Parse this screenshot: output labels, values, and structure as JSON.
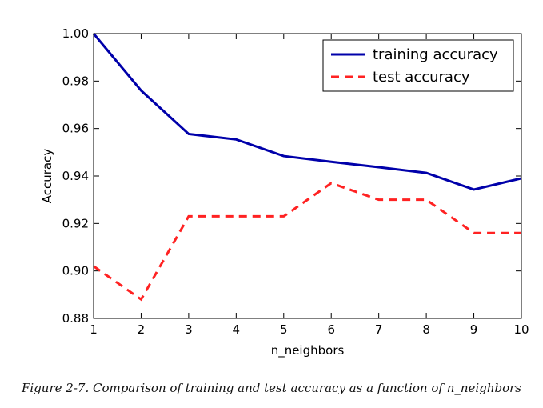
{
  "chart_data": {
    "type": "line",
    "xlabel": "n_neighbors",
    "ylabel": "Accuracy",
    "x": [
      1,
      2,
      3,
      4,
      5,
      6,
      7,
      8,
      9,
      10
    ],
    "xlim": [
      1,
      10
    ],
    "ylim": [
      0.88,
      1.0
    ],
    "xticks": [
      "1",
      "2",
      "3",
      "4",
      "5",
      "6",
      "7",
      "8",
      "9",
      "10"
    ],
    "yticks": [
      "0.88",
      "0.90",
      "0.92",
      "0.94",
      "0.96",
      "0.98",
      "1.00"
    ],
    "grid": false,
    "legend_position": "top-right",
    "series": [
      {
        "name": "training accuracy",
        "color": "#0000aa",
        "style": "solid",
        "values": [
          1.0,
          0.976,
          0.9577,
          0.9554,
          0.9484,
          0.946,
          0.9437,
          0.9413,
          0.9343,
          0.939
        ]
      },
      {
        "name": "test accuracy",
        "color": "#ff2222",
        "style": "dashed",
        "values": [
          0.902,
          0.888,
          0.923,
          0.923,
          0.923,
          0.937,
          0.93,
          0.93,
          0.916,
          0.916
        ]
      }
    ]
  },
  "caption": "Figure 2-7. Comparison of training and test accuracy as a function of n_neighbors"
}
